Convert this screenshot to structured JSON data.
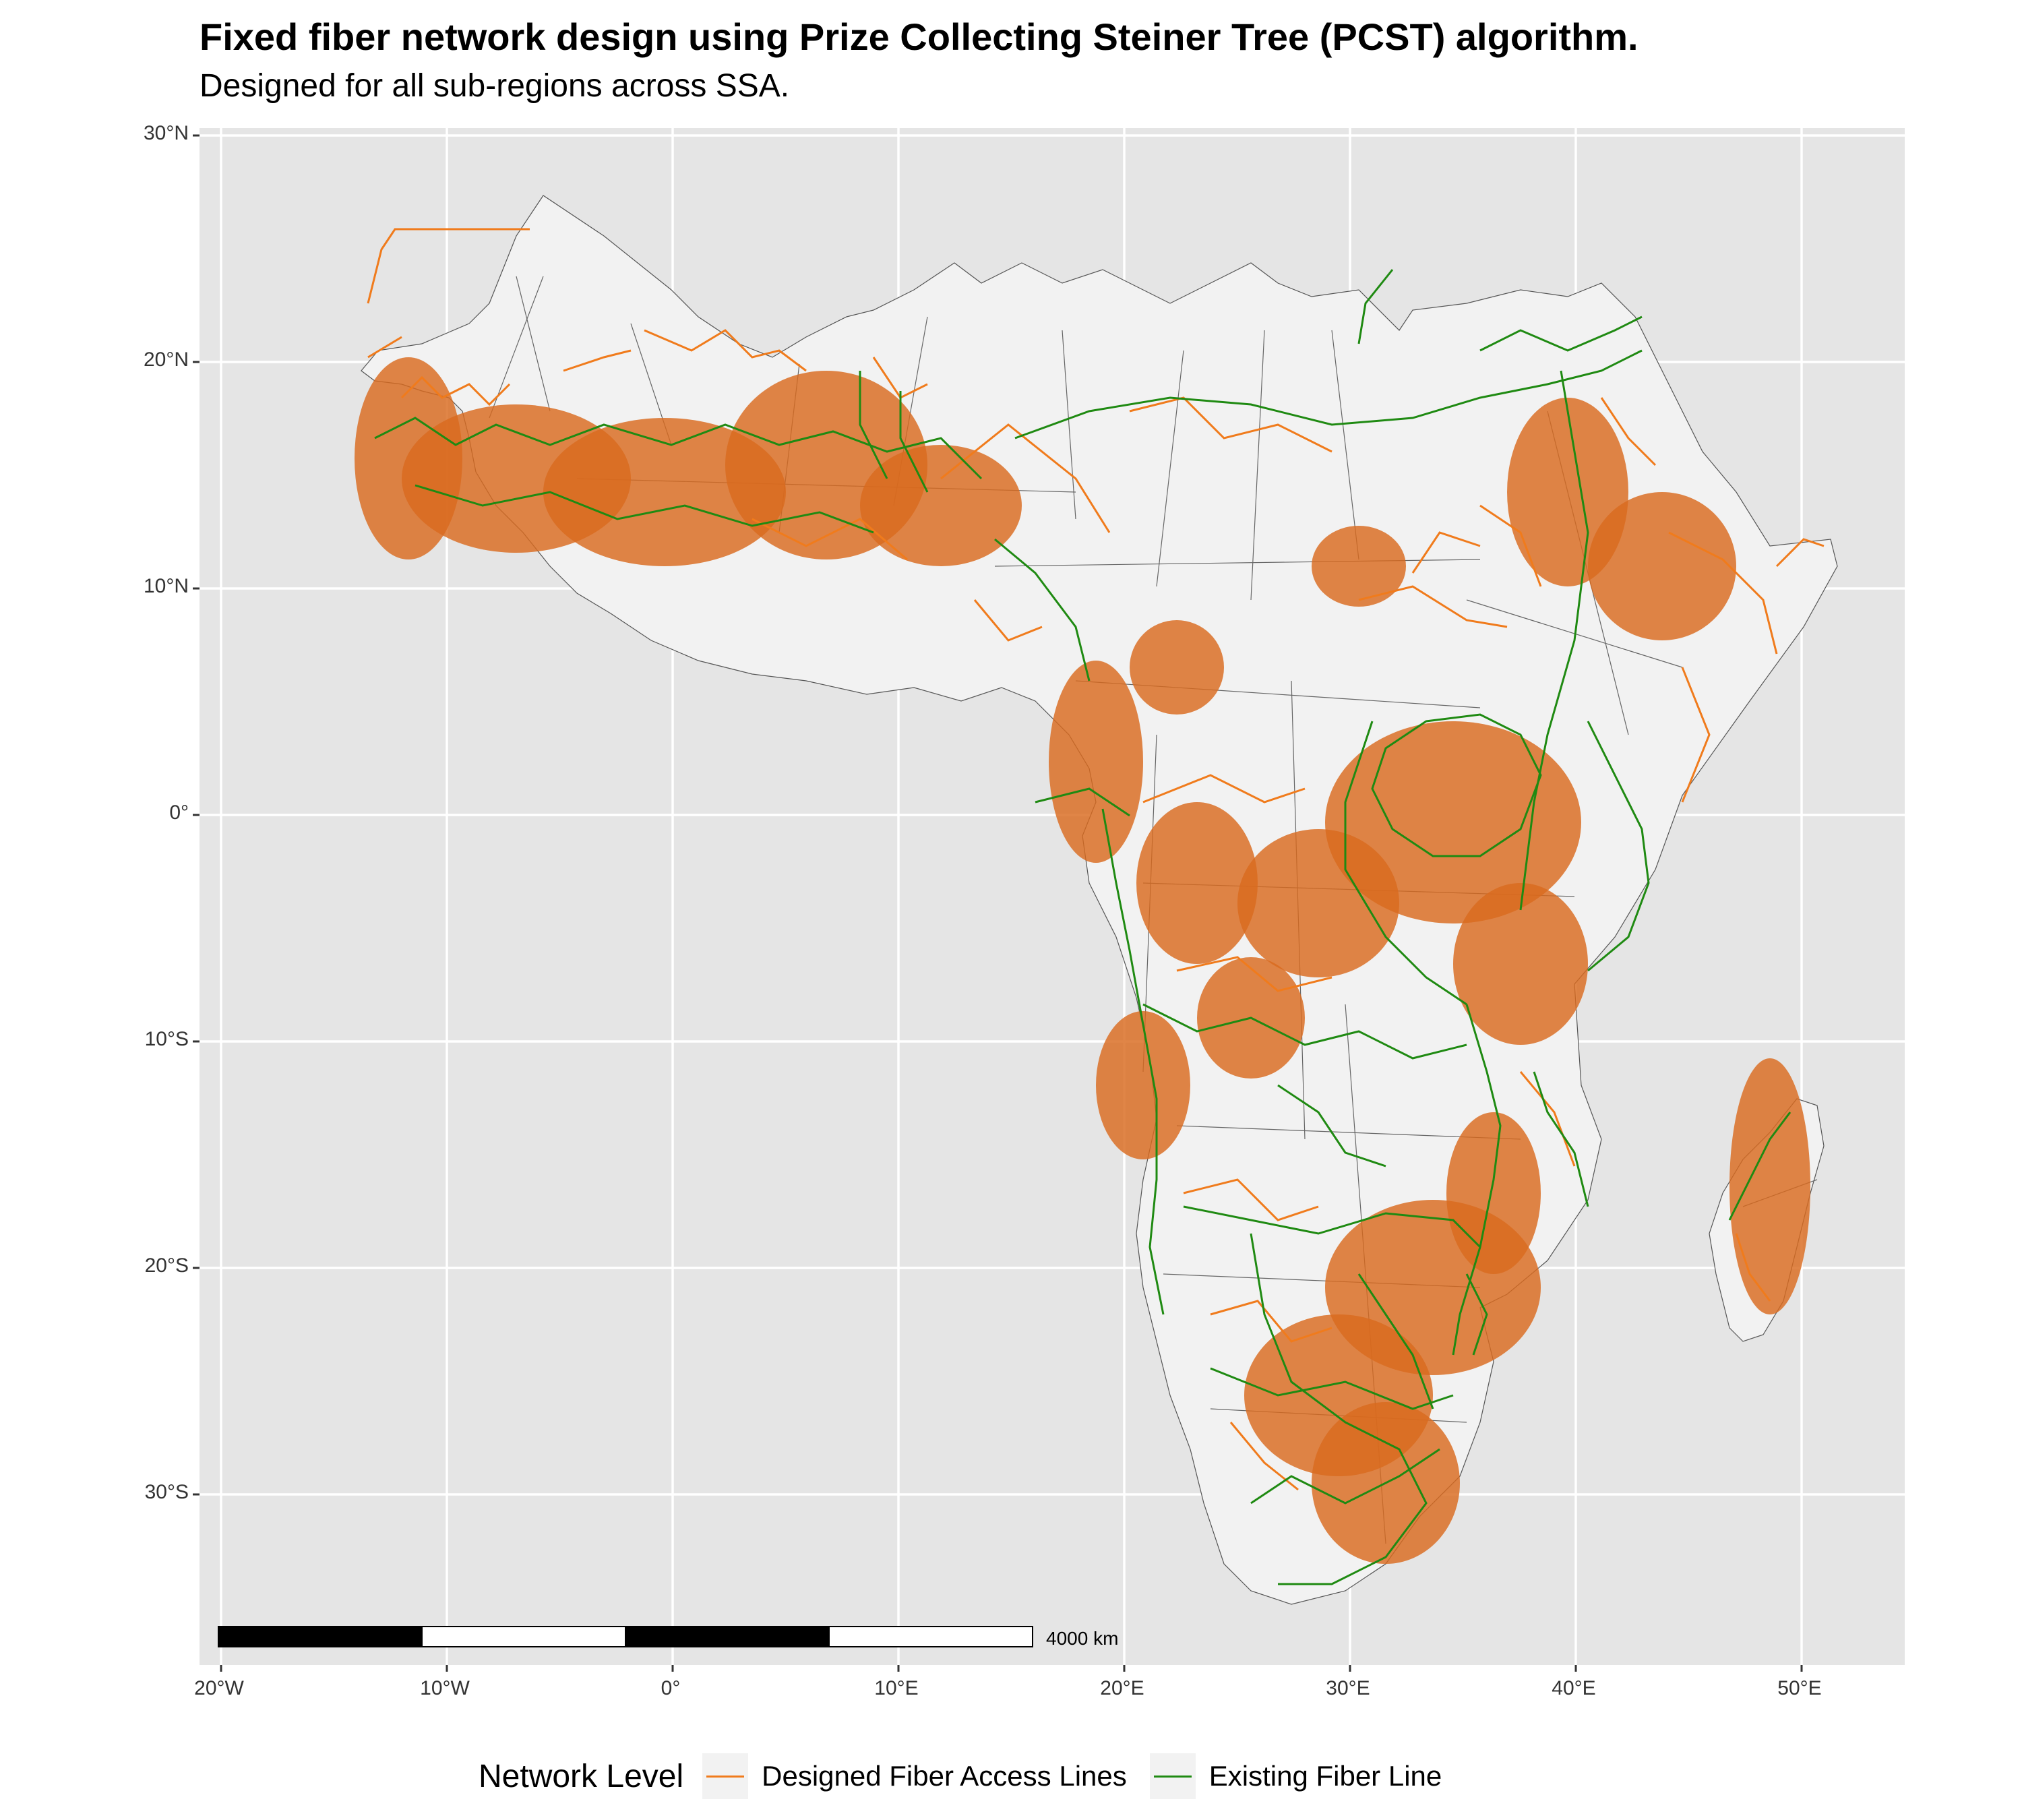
{
  "title": "Fixed fiber network design using Prize Collecting Steiner Tree (PCST) algorithm.",
  "subtitle": "Designed for all sub-regions across SSA.",
  "axes": {
    "y_labels": [
      "30°N",
      "20°N",
      "10°N",
      "0°",
      "10°S",
      "20°S",
      "30°S"
    ],
    "x_labels": [
      "20°W",
      "10°W",
      "0°",
      "10°E",
      "20°E",
      "30°E",
      "40°E",
      "50°E"
    ]
  },
  "scale_bar": {
    "label": "4000 km"
  },
  "legend": {
    "title": "Network Level",
    "items": [
      {
        "label": "Designed Fiber Access Lines",
        "color": "#f07b1c"
      },
      {
        "label": "Existing Fiber Line",
        "color": "#1f8a12"
      }
    ]
  },
  "colors": {
    "panel": "#e5e5e5",
    "land": "#f2f2f2",
    "border": "#555555",
    "designed": "#f07b1c",
    "existing": "#1f8a12"
  }
}
